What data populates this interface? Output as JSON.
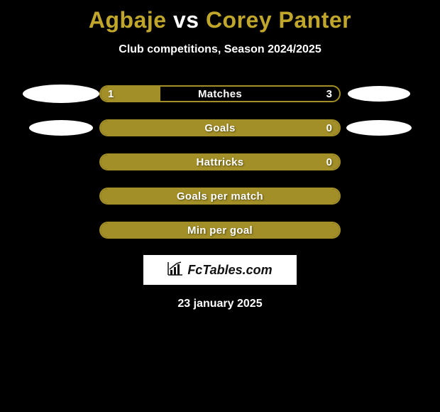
{
  "background_color": "#000000",
  "accent_color": "#a38f27",
  "title_accent_color": "#c0a62a",
  "text_color": "#ffffff",
  "title": {
    "player1": "Agbaje",
    "vs": "vs",
    "player2": "Corey Panter",
    "fontsize": 32
  },
  "subtitle": "Club competitions, Season 2024/2025",
  "chart": {
    "track_width": 340,
    "track_height": 24,
    "track_border_radius": 12,
    "track_border_color": "#a38f27",
    "fill_color": "#a38f27",
    "label_fontsize": 15,
    "rows": [
      {
        "label": "Matches",
        "left_value": "1",
        "right_value": "3",
        "left_fill_pct": 25,
        "show_left_ellipse": true,
        "show_right_ellipse": true,
        "left_ellipse_w": 108,
        "left_ellipse_h": 26,
        "right_ellipse_w": 88,
        "right_ellipse_h": 22
      },
      {
        "label": "Goals",
        "left_value": "",
        "right_value": "0",
        "left_fill_pct": 100,
        "show_left_ellipse": true,
        "show_right_ellipse": true,
        "left_ellipse_w": 90,
        "left_ellipse_h": 22,
        "right_ellipse_w": 92,
        "right_ellipse_h": 22
      },
      {
        "label": "Hattricks",
        "left_value": "",
        "right_value": "0",
        "left_fill_pct": 100,
        "show_left_ellipse": false,
        "show_right_ellipse": false
      },
      {
        "label": "Goals per match",
        "left_value": "",
        "right_value": "",
        "left_fill_pct": 100,
        "show_left_ellipse": false,
        "show_right_ellipse": false
      },
      {
        "label": "Min per goal",
        "left_value": "",
        "right_value": "",
        "left_fill_pct": 100,
        "show_left_ellipse": false,
        "show_right_ellipse": false
      }
    ]
  },
  "logo": {
    "text": "FcTables.com",
    "icon_name": "bar-chart-icon",
    "box_bg": "#ffffff",
    "text_color": "#111111"
  },
  "date": "23 january 2025"
}
